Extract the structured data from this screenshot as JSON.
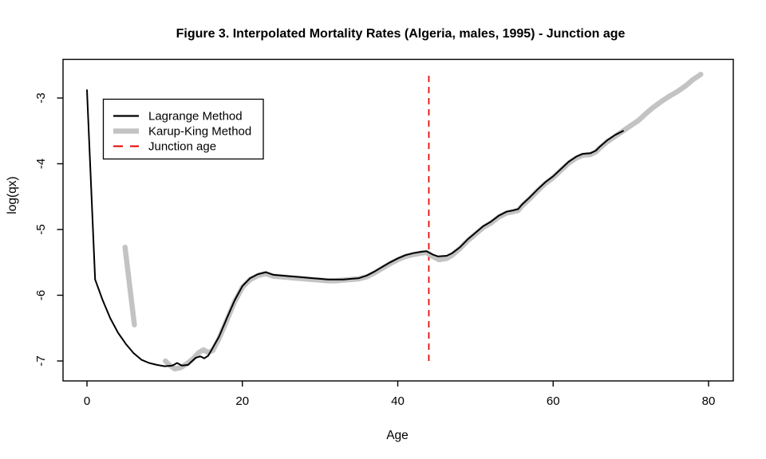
{
  "chart_data": {
    "type": "line",
    "title": "Figure 3. Interpolated Mortality Rates (Algeria, males, 1995) - Junction age",
    "xlabel": "Age",
    "ylabel": "log(qx)",
    "xlim": [
      0,
      80
    ],
    "ylim": [
      -7.3,
      -2.4
    ],
    "x_ticks": [
      0,
      20,
      40,
      60,
      80
    ],
    "y_ticks": [
      -3,
      -4,
      -5,
      -6,
      -7
    ],
    "grid": false,
    "background": "#ffffff",
    "box_color": "#000000",
    "junction_age": 44,
    "junction_line": {
      "x": 44,
      "y_from": -7.0,
      "y_to": -2.66,
      "color": "#e60000",
      "style": "dashed",
      "width": 1.7
    },
    "legend": {
      "position": "top-left",
      "border": true,
      "entries": [
        {
          "label": "Lagrange Method",
          "color": "#000000",
          "style": "solid",
          "width": 2.2
        },
        {
          "label": "Karup-King Method",
          "color": "#c3c3c3",
          "style": "solid",
          "width": 6.5
        },
        {
          "label": "Junction age",
          "color": "#e60000",
          "style": "dashed",
          "width": 2.0
        }
      ]
    },
    "series": [
      {
        "name": "Karup-King Method (child segment)",
        "color": "#c3c3c3",
        "width": 6.5,
        "style": "solid",
        "points": [
          [
            4.9,
            -5.27
          ],
          [
            6.1,
            -6.45
          ]
        ]
      },
      {
        "name": "Karup-King Method",
        "color": "#c3c3c3",
        "width": 6.5,
        "style": "solid",
        "points": [
          [
            10.1,
            -7.0
          ],
          [
            10.6,
            -7.06
          ],
          [
            11.3,
            -7.12
          ],
          [
            12.1,
            -7.1
          ],
          [
            13,
            -7.03
          ],
          [
            13.7,
            -6.96
          ],
          [
            14.4,
            -6.87
          ],
          [
            15,
            -6.83
          ],
          [
            15.6,
            -6.87
          ],
          [
            16.2,
            -6.84
          ],
          [
            17,
            -6.66
          ],
          [
            18,
            -6.38
          ],
          [
            19,
            -6.1
          ],
          [
            20,
            -5.88
          ],
          [
            21,
            -5.76
          ],
          [
            22,
            -5.7
          ],
          [
            23,
            -5.67
          ],
          [
            24,
            -5.71
          ],
          [
            25,
            -5.72
          ],
          [
            26,
            -5.73
          ],
          [
            27,
            -5.74
          ],
          [
            28,
            -5.75
          ],
          [
            29,
            -5.76
          ],
          [
            30,
            -5.77
          ],
          [
            31,
            -5.78
          ],
          [
            32,
            -5.78
          ],
          [
            33,
            -5.77
          ],
          [
            34,
            -5.76
          ],
          [
            35,
            -5.75
          ],
          [
            36,
            -5.72
          ],
          [
            37,
            -5.66
          ],
          [
            38,
            -5.59
          ],
          [
            39,
            -5.52
          ],
          [
            40,
            -5.46
          ],
          [
            41,
            -5.41
          ],
          [
            42,
            -5.38
          ],
          [
            43,
            -5.36
          ],
          [
            43.7,
            -5.35
          ],
          [
            44.5,
            -5.41
          ],
          [
            45.3,
            -5.46
          ],
          [
            46.3,
            -5.44
          ],
          [
            47,
            -5.39
          ],
          [
            48,
            -5.29
          ],
          [
            49,
            -5.17
          ],
          [
            50,
            -5.07
          ],
          [
            51,
            -4.97
          ],
          [
            52,
            -4.9
          ],
          [
            53,
            -4.81
          ],
          [
            54,
            -4.75
          ],
          [
            54.8,
            -4.73
          ],
          [
            55.5,
            -4.71
          ],
          [
            56,
            -4.64
          ],
          [
            57,
            -4.53
          ],
          [
            58,
            -4.41
          ],
          [
            59,
            -4.3
          ],
          [
            60,
            -4.21
          ],
          [
            61,
            -4.1
          ],
          [
            62,
            -3.99
          ],
          [
            63,
            -3.91
          ],
          [
            63.8,
            -3.87
          ],
          [
            64.8,
            -3.86
          ],
          [
            65.5,
            -3.82
          ],
          [
            66,
            -3.76
          ],
          [
            67,
            -3.66
          ],
          [
            68,
            -3.58
          ],
          [
            69,
            -3.5
          ],
          [
            70,
            -3.42
          ],
          [
            71,
            -3.34
          ],
          [
            72,
            -3.23
          ],
          [
            72.8,
            -3.15
          ],
          [
            73.5,
            -3.09
          ],
          [
            74.2,
            -3.03
          ],
          [
            75,
            -2.97
          ],
          [
            76,
            -2.9
          ],
          [
            77,
            -2.82
          ],
          [
            78,
            -2.72
          ],
          [
            79,
            -2.64
          ]
        ]
      },
      {
        "name": "Lagrange Method",
        "color": "#000000",
        "width": 2,
        "style": "solid",
        "points": [
          [
            0,
            -2.88
          ],
          [
            1.05,
            -5.76
          ],
          [
            2,
            -6.07
          ],
          [
            3,
            -6.35
          ],
          [
            4,
            -6.57
          ],
          [
            5,
            -6.74
          ],
          [
            6,
            -6.88
          ],
          [
            7,
            -6.98
          ],
          [
            8,
            -7.03
          ],
          [
            9,
            -7.06
          ],
          [
            10,
            -7.08
          ],
          [
            11,
            -7.07
          ],
          [
            11.6,
            -7.03
          ],
          [
            12.2,
            -7.07
          ],
          [
            13,
            -7.06
          ],
          [
            14,
            -6.95
          ],
          [
            14.6,
            -6.93
          ],
          [
            15.1,
            -6.96
          ],
          [
            15.6,
            -6.92
          ],
          [
            16,
            -6.84
          ],
          [
            17,
            -6.63
          ],
          [
            18,
            -6.35
          ],
          [
            19,
            -6.08
          ],
          [
            20,
            -5.86
          ],
          [
            21,
            -5.74
          ],
          [
            22,
            -5.68
          ],
          [
            23,
            -5.65
          ],
          [
            24,
            -5.69
          ],
          [
            25,
            -5.7
          ],
          [
            26,
            -5.71
          ],
          [
            27,
            -5.72
          ],
          [
            28,
            -5.73
          ],
          [
            29,
            -5.74
          ],
          [
            30,
            -5.75
          ],
          [
            31,
            -5.76
          ],
          [
            32,
            -5.76
          ],
          [
            33,
            -5.76
          ],
          [
            34,
            -5.75
          ],
          [
            35,
            -5.74
          ],
          [
            36,
            -5.7
          ],
          [
            37,
            -5.64
          ],
          [
            38,
            -5.57
          ],
          [
            39,
            -5.5
          ],
          [
            40,
            -5.44
          ],
          [
            41,
            -5.39
          ],
          [
            42,
            -5.36
          ],
          [
            43,
            -5.34
          ],
          [
            43.7,
            -5.33
          ],
          [
            44.5,
            -5.38
          ],
          [
            45.2,
            -5.41
          ],
          [
            46.3,
            -5.4
          ],
          [
            47,
            -5.36
          ],
          [
            48,
            -5.27
          ],
          [
            49,
            -5.15
          ],
          [
            50,
            -5.05
          ],
          [
            51,
            -4.95
          ],
          [
            52,
            -4.88
          ],
          [
            53,
            -4.79
          ],
          [
            54,
            -4.73
          ],
          [
            54.8,
            -4.71
          ],
          [
            55.5,
            -4.69
          ],
          [
            56,
            -4.62
          ],
          [
            57,
            -4.51
          ],
          [
            58,
            -4.39
          ],
          [
            59,
            -4.28
          ],
          [
            60,
            -4.19
          ],
          [
            61,
            -4.08
          ],
          [
            62,
            -3.97
          ],
          [
            63,
            -3.89
          ],
          [
            63.8,
            -3.85
          ],
          [
            64.8,
            -3.84
          ],
          [
            65.5,
            -3.8
          ],
          [
            66,
            -3.74
          ],
          [
            67,
            -3.64
          ],
          [
            68,
            -3.56
          ],
          [
            69,
            -3.5
          ]
        ]
      }
    ]
  }
}
